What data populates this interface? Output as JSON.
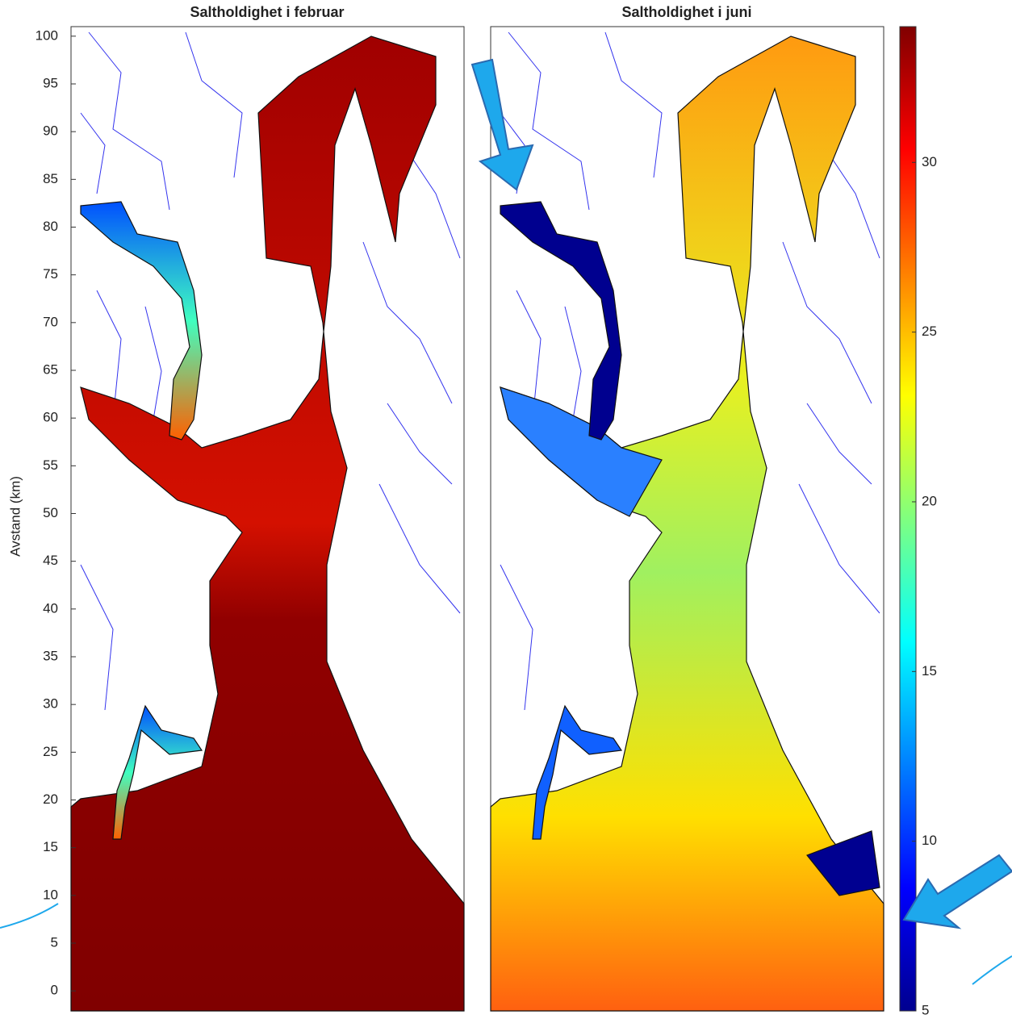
{
  "panels": [
    {
      "title": "Saltholdighet i februar"
    },
    {
      "title": "Saltholdighet i juni"
    }
  ],
  "y_axis": {
    "label": "Avstand (km)",
    "ylim": [
      -2.1,
      101
    ],
    "ticks": [
      0,
      5,
      10,
      15,
      20,
      25,
      30,
      35,
      40,
      45,
      50,
      55,
      60,
      65,
      70,
      75,
      80,
      85,
      90,
      95,
      100
    ]
  },
  "colorbar": {
    "clim": [
      5,
      34
    ],
    "ticks": [
      5,
      10,
      15,
      20,
      25,
      30
    ]
  }
}
